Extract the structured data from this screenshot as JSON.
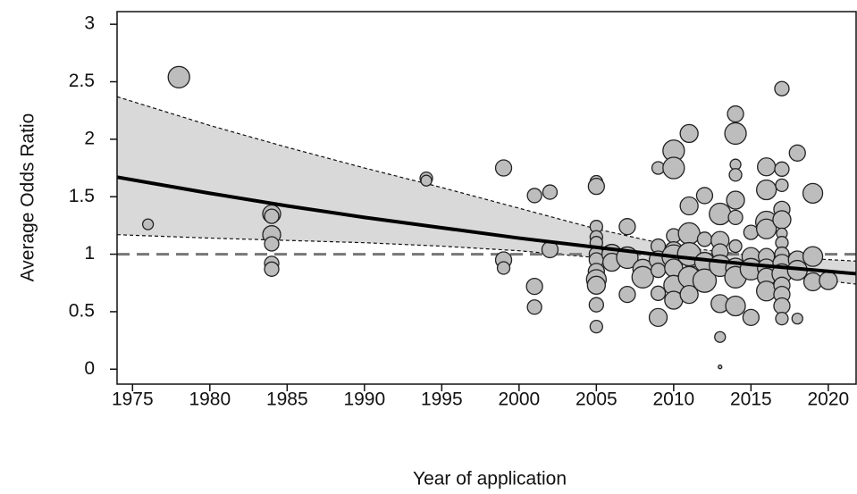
{
  "chart_data": {
    "type": "bubble",
    "x_label": "Year of application",
    "y_label": "Average Odds Ratio",
    "xlim": [
      1974,
      2021.8
    ],
    "ylim": [
      -0.13,
      3.11
    ],
    "xticks": [
      1975,
      1980,
      1985,
      1990,
      1995,
      2000,
      2005,
      2010,
      2015,
      2020
    ],
    "yticks": [
      0,
      0.5,
      1,
      1.5,
      2,
      2.5,
      3
    ],
    "reference": 1,
    "point_color": "#bdbdbd",
    "band_color": "#d9d9d9",
    "fit": {
      "x": [
        1974,
        1980,
        1985,
        1990,
        1995,
        2000,
        2005,
        2010,
        2015,
        2021.8
      ],
      "values": [
        1.67,
        1.53,
        1.42,
        1.32,
        1.23,
        1.14,
        1.06,
        0.98,
        0.91,
        0.83
      ],
      "upper": [
        2.37,
        2.12,
        1.93,
        1.75,
        1.58,
        1.4,
        1.22,
        1.07,
        0.99,
        0.94
      ],
      "lower": [
        1.17,
        1.14,
        1.12,
        1.1,
        1.07,
        1.03,
        0.97,
        0.91,
        0.84,
        0.74
      ]
    },
    "points": {
      "x": [
        1976,
        1978,
        1984,
        1984,
        1984,
        1984,
        1984,
        1984,
        1994,
        1994,
        1999,
        1999,
        1999,
        2001,
        2001,
        2001,
        2002,
        2002,
        2005,
        2005,
        2005,
        2005,
        2005,
        2005,
        2005,
        2005,
        2005,
        2005,
        2005,
        2005,
        2006,
        2006,
        2007,
        2007,
        2007,
        2008,
        2008,
        2009,
        2009,
        2009,
        2009,
        2009,
        2009,
        2010,
        2010,
        2010,
        2010,
        2010,
        2010,
        2010,
        2010,
        2011,
        2011,
        2011,
        2011,
        2011,
        2011,
        2012,
        2012,
        2012,
        2012,
        2013,
        2013,
        2013,
        2013,
        2013,
        2013,
        2013,
        2014,
        2014,
        2014,
        2014,
        2014,
        2014,
        2014,
        2014,
        2014,
        2014,
        2015,
        2015,
        2015,
        2015,
        2016,
        2016,
        2016,
        2016,
        2016,
        2016,
        2016,
        2016,
        2017,
        2017,
        2017,
        2017,
        2017,
        2017,
        2017,
        2017,
        2017,
        2017,
        2017,
        2017,
        2017,
        2017,
        2018,
        2018,
        2018,
        2018,
        2019,
        2019,
        2019,
        2020
      ],
      "values": [
        1.26,
        2.54,
        1.35,
        1.33,
        1.17,
        1.09,
        0.92,
        0.87,
        1.66,
        1.64,
        1.75,
        0.95,
        0.88,
        1.51,
        0.72,
        0.54,
        1.54,
        1.04,
        1.63,
        1.59,
        1.24,
        1.15,
        1.1,
        1.0,
        0.95,
        0.85,
        0.78,
        0.73,
        0.56,
        0.37,
        1.0,
        0.93,
        1.24,
        0.97,
        0.65,
        0.87,
        0.8,
        1.75,
        1.07,
        0.95,
        0.86,
        0.66,
        0.45,
        1.9,
        1.75,
        1.16,
        1.03,
        0.98,
        0.88,
        0.73,
        0.6,
        2.05,
        1.42,
        1.18,
        1.0,
        0.8,
        0.65,
        1.51,
        1.13,
        0.93,
        0.77,
        1.35,
        1.12,
        1.02,
        0.9,
        0.57,
        0.28,
        0.02,
        2.22,
        2.05,
        1.78,
        1.69,
        1.47,
        1.32,
        1.07,
        0.88,
        0.8,
        0.55,
        1.19,
        0.98,
        0.87,
        0.45,
        1.76,
        1.56,
        1.28,
        1.22,
        0.98,
        0.88,
        0.8,
        0.68,
        2.44,
        1.74,
        1.6,
        1.39,
        1.3,
        1.18,
        1.1,
        1.0,
        0.92,
        0.83,
        0.73,
        0.65,
        0.55,
        0.44,
        1.88,
        0.95,
        0.86,
        0.44,
        1.53,
        0.98,
        0.76,
        0.77
      ],
      "sizes": [
        6,
        12,
        10,
        8,
        10,
        8,
        8,
        8,
        7,
        6,
        9,
        9,
        7,
        8,
        9,
        8,
        8,
        9,
        7,
        9,
        7,
        7,
        7,
        8,
        8,
        9,
        11,
        10,
        8,
        7,
        11,
        10,
        9,
        12,
        9,
        11,
        12,
        7,
        8,
        10,
        8,
        8,
        10,
        12,
        12,
        8,
        10,
        13,
        10,
        11,
        10,
        10,
        10,
        12,
        13,
        12,
        10,
        9,
        8,
        11,
        13,
        12,
        10,
        9,
        12,
        10,
        6,
        2,
        9,
        12,
        6,
        7,
        10,
        8,
        7,
        11,
        12,
        11,
        8,
        10,
        12,
        9,
        10,
        11,
        12,
        11,
        9,
        10,
        10,
        11,
        8,
        8,
        7,
        9,
        10,
        6,
        7,
        8,
        10,
        11,
        9,
        9,
        9,
        7,
        9,
        10,
        11,
        6,
        11,
        11,
        10,
        10
      ]
    }
  }
}
